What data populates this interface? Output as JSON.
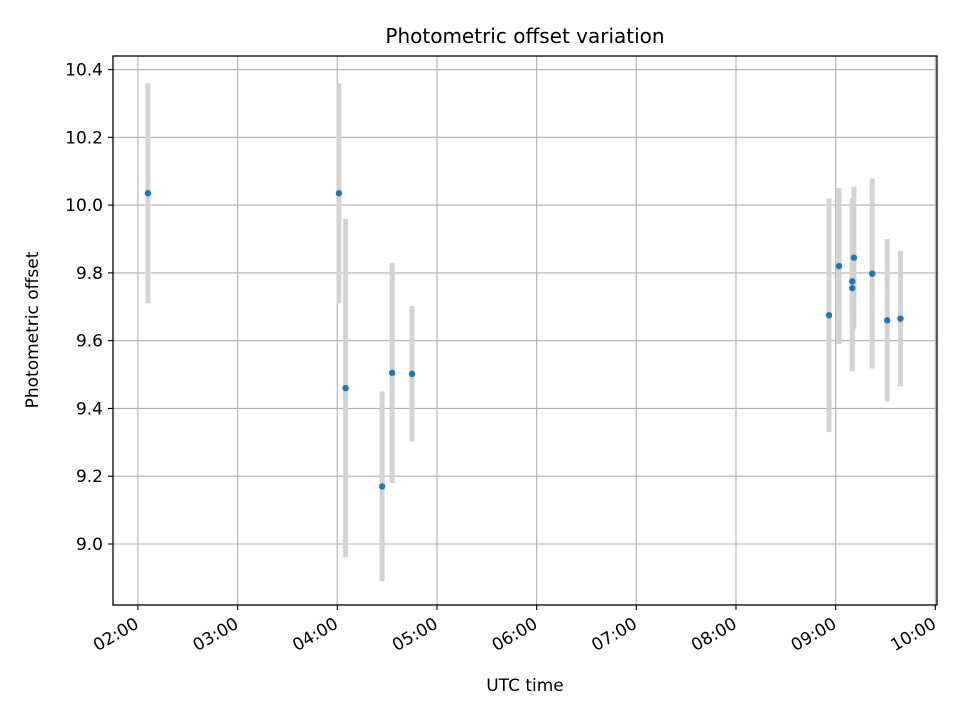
{
  "chart_data": {
    "type": "scatter",
    "title": "Photometric offset variation",
    "xlabel": "UTC time",
    "ylabel": "Photometric offset",
    "x_tick_labels": [
      "02:00",
      "03:00",
      "04:00",
      "05:00",
      "06:00",
      "07:00",
      "08:00",
      "09:00",
      "10:00"
    ],
    "y_tick_labels": [
      "9.0",
      "9.2",
      "9.4",
      "9.6",
      "9.8",
      "10.0",
      "10.2",
      "10.4"
    ],
    "xlim": [
      "01:45",
      "10:01"
    ],
    "ylim": [
      8.82,
      10.44
    ],
    "grid": true,
    "colors": {
      "points": "#1f77b4",
      "error_bars": "#d3d3d3",
      "grid": "#b0b0b0"
    },
    "series": [
      {
        "points": [
          {
            "x": "02:06",
            "y": 10.035,
            "err": 0.325
          },
          {
            "x": "04:01",
            "y": 10.035,
            "err": 0.325
          },
          {
            "x": "04:05",
            "y": 9.46,
            "err": 0.5
          },
          {
            "x": "04:27",
            "y": 9.17,
            "err": 0.28
          },
          {
            "x": "04:33",
            "y": 9.505,
            "err": 0.325
          },
          {
            "x": "04:45",
            "y": 9.502,
            "err": 0.2
          },
          {
            "x": "08:56",
            "y": 9.675,
            "err": 0.345
          },
          {
            "x": "09:02",
            "y": 9.82,
            "err": 0.23
          },
          {
            "x": "09:10",
            "y": 9.775,
            "err": 0.245
          },
          {
            "x": "09:10",
            "y": 9.755,
            "err": 0.245
          },
          {
            "x": "09:11",
            "y": 9.845,
            "err": 0.21
          },
          {
            "x": "09:22",
            "y": 9.798,
            "err": 0.28
          },
          {
            "x": "09:31",
            "y": 9.66,
            "err": 0.24
          },
          {
            "x": "09:39",
            "y": 9.665,
            "err": 0.2
          }
        ]
      }
    ]
  }
}
